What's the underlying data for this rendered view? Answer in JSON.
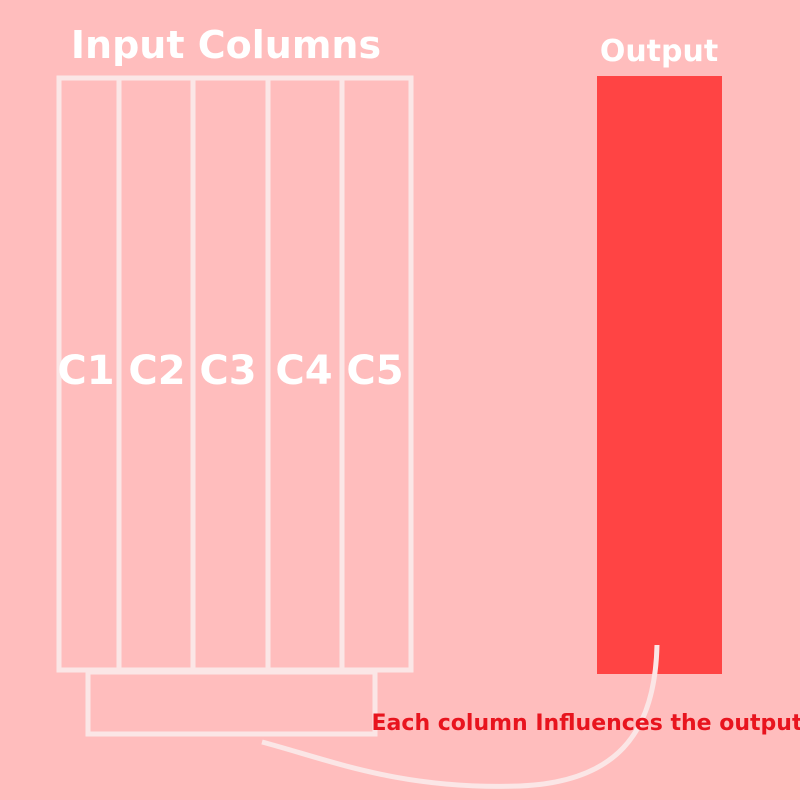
{
  "diagram": {
    "input_title": "Input Columns",
    "output_title": "Output",
    "columns": [
      "C1",
      "C2",
      "C3",
      "C4",
      "C5"
    ],
    "caption": "Each column Influences the output",
    "colors": {
      "background": "#ffbdbd",
      "outline": "#fbe6e6",
      "output_fill": "#ff4444",
      "caption": "#e8141e",
      "title": "#ffffff"
    }
  }
}
